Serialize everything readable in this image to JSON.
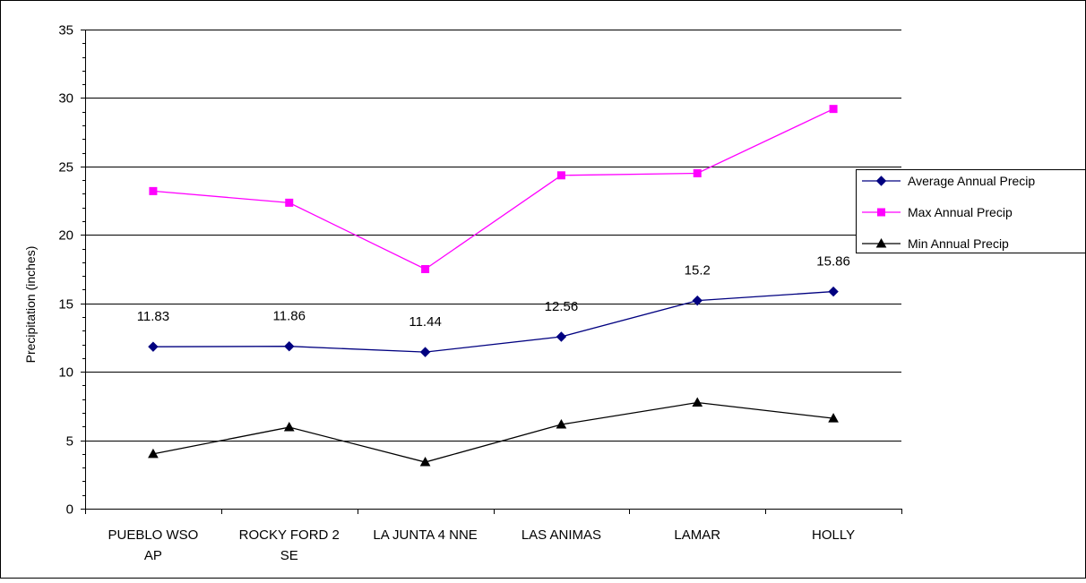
{
  "chart_data": {
    "type": "line",
    "categories": [
      "PUEBLO WSO AP",
      "ROCKY FORD 2 SE",
      "LA JUNTA 4 NNE",
      "LAS ANIMAS",
      "LAMAR",
      "HOLLY"
    ],
    "category_lines": [
      [
        "PUEBLO WSO",
        "AP"
      ],
      [
        "ROCKY FORD 2",
        "SE"
      ],
      [
        "LA JUNTA 4 NNE"
      ],
      [
        "LAS ANIMAS"
      ],
      [
        "LAMAR"
      ],
      [
        "HOLLY"
      ]
    ],
    "series": [
      {
        "name": "Average Annual Precip",
        "values": [
          11.83,
          11.86,
          11.44,
          12.56,
          15.2,
          15.86
        ],
        "data_labels": [
          "11.83",
          "11.86",
          "11.44",
          "12.56",
          "15.2",
          "15.86"
        ],
        "color": "#000080",
        "marker": "diamond"
      },
      {
        "name": "Max Annual Precip",
        "values": [
          23.2,
          22.35,
          17.5,
          24.35,
          24.5,
          29.2
        ],
        "color": "#ff00ff",
        "marker": "square"
      },
      {
        "name": "Min Annual Precip",
        "values": [
          4.0,
          5.95,
          3.4,
          6.15,
          7.75,
          6.6
        ],
        "color": "#000000",
        "marker": "triangle"
      }
    ],
    "title": "",
    "xlabel": "",
    "ylabel": "Precipitation (inches)",
    "ylim": [
      0,
      35
    ],
    "yticks": [
      "0",
      "5",
      "10",
      "15",
      "20",
      "25",
      "30",
      "35"
    ],
    "grid": true,
    "legend_position": "right"
  }
}
